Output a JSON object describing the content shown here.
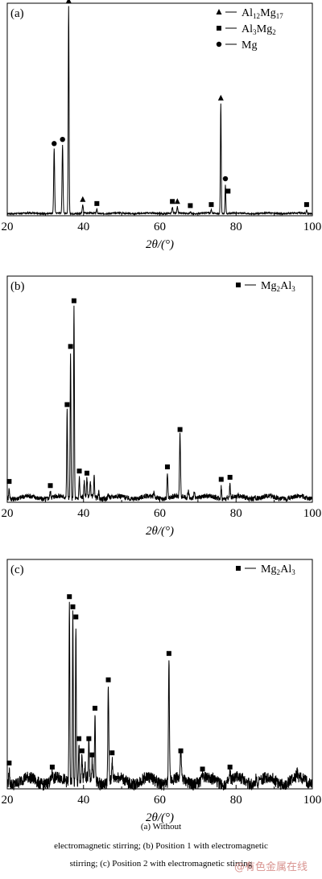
{
  "chart_data": [
    {
      "type": "line",
      "panel_label": "(a)",
      "xlabel": "2θ/(°)",
      "ylabel": "",
      "xlim": [
        20,
        100
      ],
      "xticks": [
        20,
        40,
        60,
        80,
        100
      ],
      "grid": false,
      "legend_position": "top-right",
      "legend": [
        {
          "marker": "triangle",
          "label_parts": [
            [
              "Al",
              false
            ],
            [
              "12",
              true
            ],
            [
              "Mg",
              false
            ],
            [
              "17",
              true
            ]
          ]
        },
        {
          "marker": "square",
          "label_parts": [
            [
              "Al",
              false
            ],
            [
              "3",
              true
            ],
            [
              "Mg",
              false
            ],
            [
              "2",
              true
            ]
          ]
        },
        {
          "marker": "circle",
          "label_parts": [
            [
              "Mg",
              false
            ]
          ]
        }
      ],
      "peaks": [
        {
          "x": 32.3,
          "h": 0.31,
          "w": 0.35
        },
        {
          "x": 34.5,
          "h": 0.33,
          "w": 0.35
        },
        {
          "x": 36.1,
          "h": 1.0,
          "w": 0.3
        },
        {
          "x": 39.8,
          "h": 0.04,
          "w": 0.35
        },
        {
          "x": 43.5,
          "h": 0.02,
          "w": 0.35
        },
        {
          "x": 63.3,
          "h": 0.03,
          "w": 0.35
        },
        {
          "x": 64.6,
          "h": 0.03,
          "w": 0.35
        },
        {
          "x": 68.0,
          "h": 0.01,
          "w": 0.35
        },
        {
          "x": 73.5,
          "h": 0.015,
          "w": 0.35
        },
        {
          "x": 76.0,
          "h": 0.53,
          "w": 0.3
        },
        {
          "x": 77.2,
          "h": 0.14,
          "w": 0.3
        },
        {
          "x": 98.5,
          "h": 0.015,
          "w": 0.35
        }
      ],
      "noise": 0.003,
      "markers": [
        {
          "x": 32.3,
          "h": 0.31,
          "type": "circle"
        },
        {
          "x": 34.5,
          "h": 0.33,
          "type": "circle"
        },
        {
          "x": 36.1,
          "h": 1.0,
          "type": "triangle"
        },
        {
          "x": 39.8,
          "h": 0.04,
          "type": "triangle"
        },
        {
          "x": 43.5,
          "h": 0.02,
          "type": "square"
        },
        {
          "x": 63.3,
          "h": 0.03,
          "type": "square"
        },
        {
          "x": 64.6,
          "h": 0.03,
          "type": "triangle"
        },
        {
          "x": 68.0,
          "h": 0.01,
          "type": "square"
        },
        {
          "x": 73.5,
          "h": 0.015,
          "type": "square"
        },
        {
          "x": 76.0,
          "h": 0.53,
          "type": "triangle"
        },
        {
          "x": 77.2,
          "h": 0.14,
          "type": "circle"
        },
        {
          "x": 77.9,
          "h": 0.08,
          "type": "square"
        },
        {
          "x": 98.5,
          "h": 0.015,
          "type": "square"
        }
      ]
    },
    {
      "type": "line",
      "panel_label": "(b)",
      "xlabel": "2θ/(°)",
      "ylabel": "",
      "xlim": [
        20,
        100
      ],
      "xticks": [
        20,
        40,
        60,
        80,
        100
      ],
      "grid": false,
      "legend_position": "top-right",
      "legend": [
        {
          "marker": "square",
          "label_parts": [
            [
              "Mg",
              false
            ],
            [
              "2",
              true
            ],
            [
              "Al",
              false
            ],
            [
              "3",
              true
            ]
          ]
        }
      ],
      "peaks": [
        {
          "x": 20.5,
          "h": 0.05,
          "w": 0.3
        },
        {
          "x": 31.3,
          "h": 0.03,
          "w": 0.35
        },
        {
          "x": 35.7,
          "h": 0.42,
          "w": 0.3
        },
        {
          "x": 36.6,
          "h": 0.7,
          "w": 0.3
        },
        {
          "x": 37.5,
          "h": 0.92,
          "w": 0.3
        },
        {
          "x": 38.9,
          "h": 0.1,
          "w": 0.3
        },
        {
          "x": 40.2,
          "h": 0.07,
          "w": 0.3
        },
        {
          "x": 40.9,
          "h": 0.09,
          "w": 0.3
        },
        {
          "x": 41.8,
          "h": 0.07,
          "w": 0.3
        },
        {
          "x": 42.8,
          "h": 0.1,
          "w": 0.3
        },
        {
          "x": 44.0,
          "h": 0.03,
          "w": 0.3
        },
        {
          "x": 46.5,
          "h": 0.02,
          "w": 0.4
        },
        {
          "x": 58.5,
          "h": 0.02,
          "w": 0.4
        },
        {
          "x": 62.0,
          "h": 0.12,
          "w": 0.35
        },
        {
          "x": 65.3,
          "h": 0.3,
          "w": 0.35
        },
        {
          "x": 67.5,
          "h": 0.03,
          "w": 0.5
        },
        {
          "x": 69.0,
          "h": 0.03,
          "w": 0.5
        },
        {
          "x": 76.1,
          "h": 0.06,
          "w": 0.3
        },
        {
          "x": 78.4,
          "h": 0.07,
          "w": 0.3
        },
        {
          "x": 85.0,
          "h": 0.01,
          "w": 0.4
        }
      ],
      "noise": 0.012,
      "markers": [
        {
          "x": 20.5,
          "h": 0.05,
          "type": "square"
        },
        {
          "x": 31.3,
          "h": 0.03,
          "type": "square"
        },
        {
          "x": 35.7,
          "h": 0.42,
          "type": "square"
        },
        {
          "x": 36.6,
          "h": 0.7,
          "type": "square"
        },
        {
          "x": 37.5,
          "h": 0.92,
          "type": "square"
        },
        {
          "x": 38.9,
          "h": 0.1,
          "type": "square"
        },
        {
          "x": 40.9,
          "h": 0.09,
          "type": "square"
        },
        {
          "x": 62.0,
          "h": 0.12,
          "type": "square"
        },
        {
          "x": 65.3,
          "h": 0.3,
          "type": "square"
        },
        {
          "x": 76.1,
          "h": 0.06,
          "type": "square"
        },
        {
          "x": 78.4,
          "h": 0.07,
          "type": "square"
        }
      ]
    },
    {
      "type": "line",
      "panel_label": "(c)",
      "xlabel": "2θ/(°)",
      "ylabel": "",
      "xlim": [
        20,
        100
      ],
      "xticks": [
        20,
        40,
        60,
        80,
        100
      ],
      "grid": false,
      "legend_position": "top-right",
      "legend": [
        {
          "marker": "square",
          "label_parts": [
            [
              "Mg",
              false
            ],
            [
              "2",
              true
            ],
            [
              "Al",
              false
            ],
            [
              "3",
              true
            ]
          ]
        }
      ],
      "peaks": [
        {
          "x": 20.5,
          "h": 0.06,
          "w": 0.3
        },
        {
          "x": 31.8,
          "h": 0.04,
          "w": 0.35
        },
        {
          "x": 36.3,
          "h": 0.88,
          "w": 0.3
        },
        {
          "x": 37.2,
          "h": 0.83,
          "w": 0.3
        },
        {
          "x": 38.0,
          "h": 0.78,
          "w": 0.3
        },
        {
          "x": 38.8,
          "h": 0.18,
          "w": 0.3
        },
        {
          "x": 39.6,
          "h": 0.12,
          "w": 0.3
        },
        {
          "x": 40.4,
          "h": 0.06,
          "w": 0.3
        },
        {
          "x": 41.4,
          "h": 0.18,
          "w": 0.3
        },
        {
          "x": 42.3,
          "h": 0.1,
          "w": 0.3
        },
        {
          "x": 43.0,
          "h": 0.33,
          "w": 0.3
        },
        {
          "x": 46.5,
          "h": 0.47,
          "w": 0.35
        },
        {
          "x": 47.5,
          "h": 0.11,
          "w": 0.3
        },
        {
          "x": 62.4,
          "h": 0.6,
          "w": 0.35
        },
        {
          "x": 65.5,
          "h": 0.12,
          "w": 0.4
        },
        {
          "x": 71.2,
          "h": 0.03,
          "w": 0.35
        },
        {
          "x": 78.4,
          "h": 0.04,
          "w": 0.35
        },
        {
          "x": 85.3,
          "h": 0.05,
          "w": 0.3
        },
        {
          "x": 96.0,
          "h": 0.02,
          "w": 0.35
        }
      ],
      "noise": 0.03,
      "markers": [
        {
          "x": 20.5,
          "h": 0.06,
          "type": "square"
        },
        {
          "x": 31.8,
          "h": 0.04,
          "type": "square"
        },
        {
          "x": 36.3,
          "h": 0.88,
          "type": "square"
        },
        {
          "x": 37.2,
          "h": 0.83,
          "type": "square"
        },
        {
          "x": 38.0,
          "h": 0.78,
          "type": "square"
        },
        {
          "x": 38.8,
          "h": 0.18,
          "type": "square"
        },
        {
          "x": 39.6,
          "h": 0.12,
          "type": "square"
        },
        {
          "x": 41.4,
          "h": 0.18,
          "type": "square"
        },
        {
          "x": 42.3,
          "h": 0.1,
          "type": "square"
        },
        {
          "x": 43.0,
          "h": 0.33,
          "type": "square"
        },
        {
          "x": 46.5,
          "h": 0.47,
          "type": "square"
        },
        {
          "x": 47.5,
          "h": 0.11,
          "type": "square"
        },
        {
          "x": 62.4,
          "h": 0.6,
          "type": "square"
        },
        {
          "x": 65.5,
          "h": 0.12,
          "type": "square"
        },
        {
          "x": 71.2,
          "h": 0.03,
          "type": "square"
        },
        {
          "x": 78.4,
          "h": 0.04,
          "type": "square"
        }
      ]
    }
  ],
  "caption": {
    "line1": "(a)  Without",
    "line2": "electromagnetic stirring; (b) Position 1 with electromagnetic",
    "line3": "stirring; (c) Position 2 with electromagnetic stirring"
  },
  "watermark": "@有色金属在线"
}
